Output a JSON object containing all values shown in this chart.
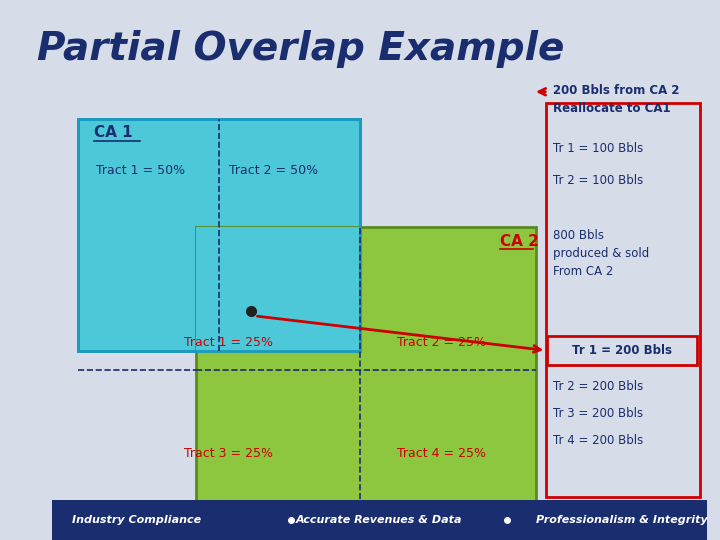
{
  "title": "Partial Overlap Example",
  "title_color": "#1a2d6e",
  "bg_color": "#d6dce8",
  "footer_bg": "#1a2d6e",
  "footer_texts": [
    "Industry Compliance",
    "Accurate Revenues & Data",
    "Professionalism & Integrity"
  ],
  "ca1_color": "#4dc8d8",
  "ca2_color": "#8dc63f",
  "ca1_border": "#1a9abf",
  "ca2_border": "#5a8a20",
  "ca1_label": "CA 1",
  "ca2_label": "CA 2",
  "arrow_color": "#cc0000",
  "text_dark": "#1a2d6e",
  "text_red": "#cc0000",
  "dot_color": "#222222"
}
